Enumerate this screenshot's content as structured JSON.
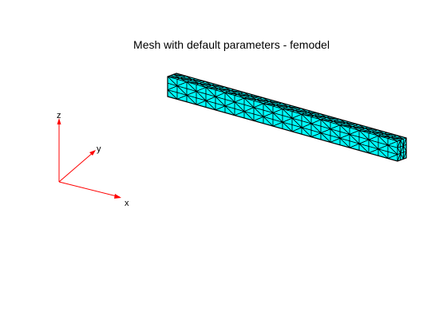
{
  "figure": {
    "title": "Mesh with default parameters - femodel"
  },
  "triad": {
    "labels": {
      "x": "x",
      "y": "y",
      "z": "z"
    },
    "color": "#ff0000"
  },
  "mesh": {
    "face_color": "#00ffff",
    "edge_color": "#000000",
    "divisions_along_beam": 24,
    "divisions_across": 3
  }
}
